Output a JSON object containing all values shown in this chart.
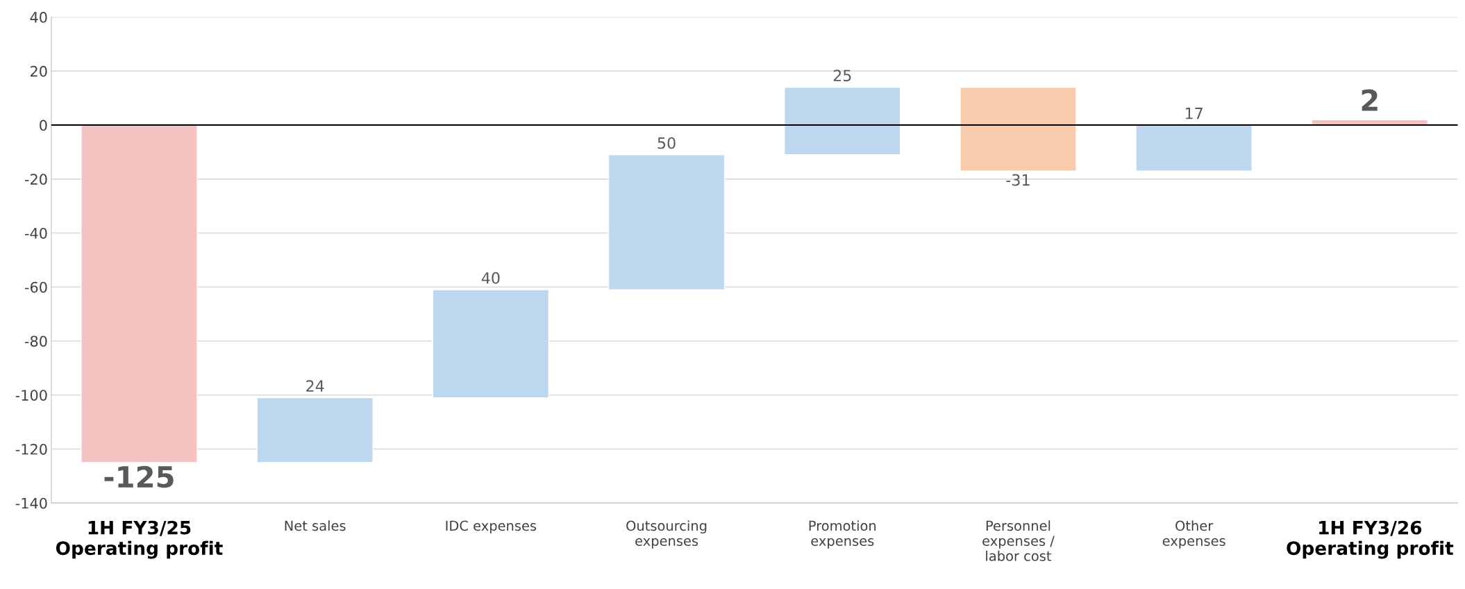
{
  "chart_data": {
    "type": "bar",
    "categories": [
      "1H FY3/25\nOperating profit",
      "Net sales",
      "IDC expenses",
      "Outsourcing\nexpenses",
      "Promotion\nexpenses",
      "Personnel\nexpenses /\nlabor cost",
      "Other\nexpenses",
      "1H FY3/26\nOperating profit"
    ],
    "values": [
      -125,
      24,
      40,
      50,
      25,
      -31,
      17,
      2
    ],
    "base": [
      0,
      -125,
      -101,
      -61,
      -11,
      14,
      -17,
      0
    ],
    "colors": [
      "#f4c2c1",
      "#bdd7ee",
      "#bdd7ee",
      "#bdd7ee",
      "#bdd7ee",
      "#f8cbad",
      "#bdd7ee",
      "#f4c2c1"
    ],
    "data_labels": true,
    "ylim": [
      -140,
      40
    ],
    "yticks": [
      -140,
      -120,
      -100,
      -80,
      -60,
      -40,
      -20,
      0,
      20,
      40
    ],
    "grid": "y",
    "ref_lines": [
      {
        "axis": "y",
        "value": 0,
        "color": "#000000"
      }
    ]
  }
}
